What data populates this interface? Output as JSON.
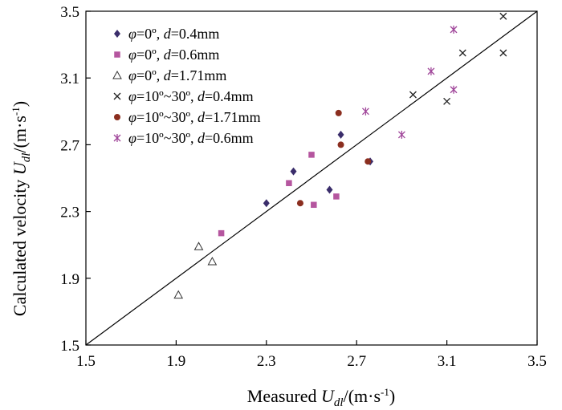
{
  "chart_data": {
    "type": "scatter",
    "title": "",
    "xlabel": {
      "prefix": "Measured ",
      "symbol": "U",
      "subscript": "dl",
      "unit_open": "/(m·s",
      "unit_exp": "-1",
      "unit_close": ")"
    },
    "ylabel": {
      "prefix": "Calculated velocity ",
      "symbol": "U",
      "subscript": "dl",
      "unit_open": "/(m·s",
      "unit_exp": "-1",
      "unit_close": ")"
    },
    "xlim": [
      1.5,
      3.5
    ],
    "ylim": [
      1.5,
      3.5
    ],
    "xticks": [
      1.5,
      1.9,
      2.3,
      2.7,
      3.1,
      3.5
    ],
    "yticks": [
      1.5,
      1.9,
      2.3,
      2.7,
      3.1,
      3.5
    ],
    "xtick_labels": [
      "1.5",
      "1.9",
      "2.3",
      "2.7",
      "3.1",
      "3.5"
    ],
    "ytick_labels": [
      "1.5",
      "1.9",
      "2.3",
      "2.7",
      "3.1",
      "3.5"
    ],
    "grid": false,
    "legend_position": "top-left",
    "reference_line": {
      "name": "y = x",
      "from": [
        1.5,
        1.5
      ],
      "to": [
        3.5,
        3.5
      ]
    },
    "series": [
      {
        "name": "φ=0º, d=0.4mm",
        "legend": {
          "phi_sym": "φ",
          "phi_val": "=0º, ",
          "d_sym": "d",
          "d_val": "=0.4mm"
        },
        "marker": "diamond",
        "color": "#3a2d6b",
        "points": [
          [
            2.3,
            2.35
          ],
          [
            2.42,
            2.54
          ],
          [
            2.58,
            2.43
          ],
          [
            2.63,
            2.76
          ],
          [
            2.76,
            2.6
          ]
        ]
      },
      {
        "name": "φ=0º, d=0.6mm",
        "legend": {
          "phi_sym": "φ",
          "phi_val": "=0º, ",
          "d_sym": "d",
          "d_val": "=0.6mm"
        },
        "marker": "square",
        "color": "#b5569f",
        "points": [
          [
            2.1,
            2.17
          ],
          [
            2.4,
            2.47
          ],
          [
            2.51,
            2.34
          ],
          [
            2.5,
            2.64
          ],
          [
            2.61,
            2.39
          ]
        ]
      },
      {
        "name": "φ=0º, d=1.71mm",
        "legend": {
          "phi_sym": "φ",
          "phi_val": "=0º, ",
          "d_sym": "d",
          "d_val": "=1.71mm"
        },
        "marker": "triangle-open",
        "color": "#333333",
        "points": [
          [
            1.91,
            1.8
          ],
          [
            2.0,
            2.09
          ],
          [
            2.06,
            2.0
          ]
        ]
      },
      {
        "name": "φ=10º~30º, d=0.4mm",
        "legend": {
          "phi_sym": "φ",
          "phi_val": "=10º~30º, ",
          "d_sym": "d",
          "d_val": "=0.4mm"
        },
        "marker": "x",
        "color": "#222222",
        "points": [
          [
            2.95,
            3.0
          ],
          [
            3.1,
            2.96
          ],
          [
            3.17,
            3.25
          ],
          [
            3.35,
            3.25
          ],
          [
            3.35,
            3.47
          ]
        ]
      },
      {
        "name": "φ=10º~30º, d=1.71mm",
        "legend": {
          "phi_sym": "φ",
          "phi_val": "=10º~30º, ",
          "d_sym": "d",
          "d_val": "=1.71mm"
        },
        "marker": "circle",
        "color": "#8b2e1f",
        "points": [
          [
            2.45,
            2.35
          ],
          [
            2.62,
            2.89
          ],
          [
            2.63,
            2.7
          ],
          [
            2.75,
            2.6
          ]
        ]
      },
      {
        "name": "φ=10º~30º, d=0.6mm",
        "legend": {
          "phi_sym": "φ",
          "phi_val": "=10º~30º, ",
          "d_sym": "d",
          "d_val": "=0.6mm"
        },
        "marker": "asterisk",
        "color": "#a0469a",
        "points": [
          [
            2.74,
            2.9
          ],
          [
            2.9,
            2.76
          ],
          [
            3.03,
            3.14
          ],
          [
            3.13,
            3.03
          ],
          [
            3.13,
            3.39
          ]
        ]
      }
    ]
  }
}
